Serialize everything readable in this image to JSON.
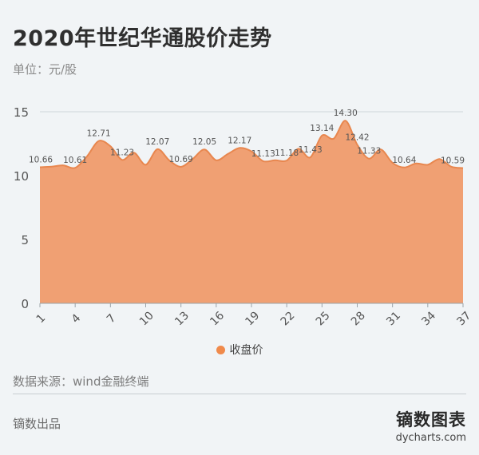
{
  "title": "2020年世纪华通股价走势",
  "unit_label": "单位：元/股",
  "source": "数据来源：wind金融终端",
  "brand_left": "镝数出品",
  "brand_logo_cn": "镝数图表",
  "brand_logo_en": "dycharts.com",
  "colors": {
    "area": "#f0a073",
    "line": "#e8874f",
    "legend": "#f08a4b",
    "grid": "#cfd6da",
    "axis_text": "#555555",
    "label_text": "#555555"
  },
  "chart_data": {
    "type": "area",
    "title": "2020年世纪华通股价走势",
    "ylabel": "单位：元/股",
    "ylim": [
      0,
      15
    ],
    "yticks": [
      0,
      5,
      10,
      15
    ],
    "xticks": [
      1,
      4,
      7,
      10,
      13,
      16,
      19,
      22,
      25,
      28,
      31,
      34,
      37
    ],
    "grid": true,
    "legend_position": "bottom",
    "series": [
      {
        "name": "收盘价",
        "x": [
          1,
          2,
          3,
          4,
          5,
          6,
          7,
          8,
          9,
          10,
          11,
          12,
          13,
          14,
          15,
          16,
          17,
          18,
          19,
          20,
          21,
          22,
          23,
          24,
          25,
          26,
          27,
          28,
          29,
          30,
          31,
          32,
          33,
          34,
          35,
          36,
          37
        ],
        "values": [
          10.66,
          10.7,
          10.8,
          10.61,
          11.5,
          12.71,
          12.3,
          11.23,
          11.8,
          10.85,
          12.07,
          11.2,
          10.69,
          11.3,
          12.05,
          11.2,
          11.7,
          12.17,
          11.9,
          11.13,
          11.2,
          11.18,
          12.1,
          11.43,
          13.14,
          12.9,
          14.3,
          12.42,
          11.33,
          12.05,
          11.0,
          10.64,
          10.95,
          10.85,
          11.3,
          10.7,
          10.59
        ],
        "labels": [
          {
            "x": 1,
            "text": "10.66"
          },
          {
            "x": 4,
            "text": "10.61"
          },
          {
            "x": 6,
            "text": "12.71"
          },
          {
            "x": 8,
            "text": "11.23"
          },
          {
            "x": 11,
            "text": "12.07"
          },
          {
            "x": 13,
            "text": "10.69"
          },
          {
            "x": 15,
            "text": "12.05"
          },
          {
            "x": 18,
            "text": "12.17"
          },
          {
            "x": 20,
            "text": "11.13"
          },
          {
            "x": 22,
            "text": "11.18"
          },
          {
            "x": 24,
            "text": "11.43"
          },
          {
            "x": 25,
            "text": "13.14"
          },
          {
            "x": 27,
            "text": "14.30"
          },
          {
            "x": 28,
            "text": "12.42"
          },
          {
            "x": 29,
            "text": "11.33"
          },
          {
            "x": 32,
            "text": "10.64"
          },
          {
            "x": 37,
            "text": "10.59"
          }
        ]
      }
    ]
  }
}
